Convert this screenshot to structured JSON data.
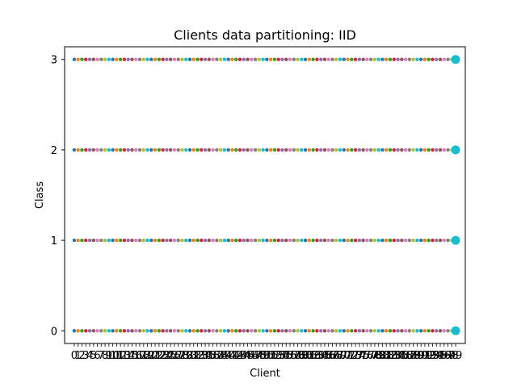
{
  "chart_data": {
    "type": "scatter",
    "title": "Clients data partitioning: IID",
    "xlabel": "Client",
    "ylabel": "Class",
    "x_categories": [
      "0",
      "1",
      "2",
      "3",
      "4",
      "5",
      "6",
      "7",
      "8",
      "9",
      "10",
      "11",
      "12",
      "13",
      "14",
      "15",
      "16",
      "17",
      "18",
      "19",
      "20",
      "21",
      "22",
      "23",
      "24",
      "25",
      "26",
      "27",
      "28",
      "29",
      "30",
      "31",
      "32",
      "33",
      "34",
      "35",
      "36",
      "37",
      "38",
      "39",
      "40",
      "41",
      "42",
      "43",
      "44",
      "45",
      "46",
      "47",
      "48",
      "49",
      "50",
      "51",
      "52",
      "53",
      "54",
      "55",
      "56",
      "57",
      "58",
      "59",
      "60",
      "61",
      "62",
      "63",
      "64",
      "65",
      "66",
      "67",
      "68",
      "69",
      "70",
      "71",
      "72",
      "73",
      "74",
      "75",
      "76",
      "77",
      "78",
      "79",
      "80",
      "81",
      "82",
      "83",
      "84",
      "85",
      "86",
      "87",
      "88",
      "89",
      "90",
      "91",
      "92",
      "93",
      "94",
      "95",
      "96",
      "97",
      "98",
      "99"
    ],
    "y_ticks": [
      0,
      1,
      2,
      3
    ],
    "ylim": [
      -0.14,
      3.14
    ],
    "classes": [
      0,
      1,
      2,
      3
    ],
    "clients_per_class": 100,
    "highlight_client": "99",
    "palette": [
      "#1f77b4",
      "#ff7f0e",
      "#2ca02c",
      "#d62728",
      "#9467bd",
      "#8c564b",
      "#e377c2",
      "#7f7f7f",
      "#bcbd22",
      "#17becf"
    ],
    "grid": false,
    "legend": "none"
  }
}
